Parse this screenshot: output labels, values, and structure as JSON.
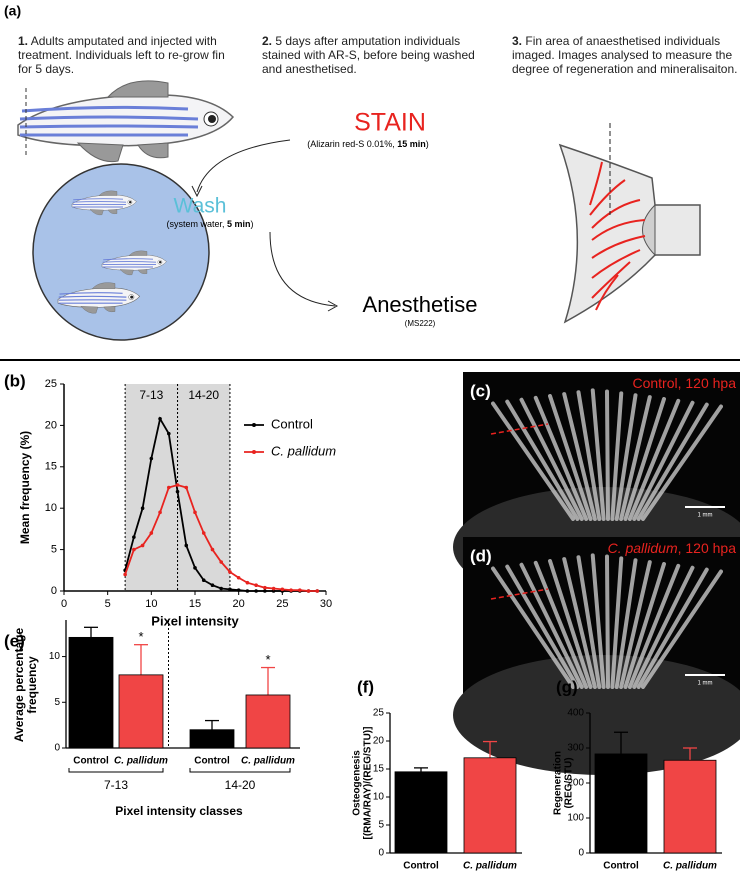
{
  "panel_a": {
    "label": "(a)",
    "steps": [
      {
        "number": "1.",
        "text": "Adults amputated and injected with treatment. Individuals left to re-grow fin for 5 days."
      },
      {
        "number": "2.",
        "text": "5 days after amputation individuals stained with AR-S, before being washed and anesthetised."
      },
      {
        "number": "3.",
        "text": "Fin area of anaesthetised individuals imaged. Images analysed to measure the degree of regeneration and mineralisaiton."
      }
    ],
    "stain": {
      "title": "STAIN",
      "detail_start": "(Alizarin red-S 0.01%, ",
      "detail_bold": "15 min",
      "detail_end": ")"
    },
    "wash": {
      "title": "Wash",
      "detail_start": "(system water, ",
      "detail_bold": "5 min",
      "detail_end": ")"
    },
    "anesthetise": {
      "title": "Anesthetise",
      "detail": "(MS222)"
    }
  },
  "images": [
    {
      "label": "(c)",
      "caption_italic": "",
      "caption": "Control, 120 hpa",
      "scale_bar": "1 mm"
    },
    {
      "label": "(d)",
      "caption_italic": "C. pallidum",
      "caption": ", 120 hpa",
      "scale_bar": "1 mm"
    }
  ],
  "chart_data": [
    {
      "type": "line",
      "label": "(b)",
      "xlabel": "Pixel intensity",
      "ylabel": "Mean frequency (%)",
      "xlim": [
        0,
        30
      ],
      "ylim": [
        0,
        25
      ],
      "xticks": [
        0,
        5,
        10,
        15,
        20,
        25,
        30
      ],
      "yticks": [
        0,
        5,
        10,
        15,
        20,
        25
      ],
      "legend": "upper right",
      "regions": [
        {
          "label": "7-13",
          "x": [
            7,
            13
          ]
        },
        {
          "label": "14-20",
          "x": [
            13,
            19
          ]
        }
      ],
      "x": [
        7,
        8,
        9,
        10,
        11,
        12,
        13,
        14,
        15,
        16,
        17,
        18,
        19,
        20,
        21,
        22,
        23,
        24,
        25,
        26,
        27,
        28,
        29
      ],
      "series": [
        {
          "name": "Control",
          "color": "#000000",
          "font_style": "normal",
          "values": [
            2.5,
            6.5,
            10,
            16,
            20.8,
            19,
            12,
            5.5,
            2.8,
            1.3,
            0.7,
            0.3,
            0.2,
            0.1,
            0,
            0,
            0,
            0,
            0,
            0,
            0,
            0,
            0
          ]
        },
        {
          "name": "C. pallidum",
          "color": "#e8231f",
          "font_style": "italic",
          "values": [
            2,
            5,
            5.5,
            7,
            9.5,
            12.5,
            12.8,
            12.5,
            9.5,
            7,
            5,
            3.5,
            2.3,
            1.6,
            1,
            0.7,
            0.4,
            0.3,
            0.2,
            0.1,
            0.1,
            0,
            0
          ]
        }
      ]
    },
    {
      "type": "bar",
      "label": "(e)",
      "xlabel": "Pixel intensity classes",
      "ylabel": [
        "Average percentage",
        "frequency"
      ],
      "categories": [
        "Control",
        "C. pallidum",
        "Control",
        "C. pallidum"
      ],
      "category_styles": [
        "normal",
        "italic",
        "normal",
        "italic"
      ],
      "groups": [
        "7-13",
        "14-20"
      ],
      "values": [
        12.1,
        8.0,
        2.0,
        5.8
      ],
      "errors": [
        1.1,
        3.3,
        1.0,
        3.0
      ],
      "significance": [
        null,
        "*",
        null,
        "*"
      ],
      "colors": [
        "#000000",
        "#f04545",
        "#000000",
        "#f04545"
      ],
      "ylim": [
        0,
        14
      ],
      "yticks": [
        0,
        5,
        10
      ]
    },
    {
      "type": "bar",
      "label": "(f)",
      "ylabel": [
        "Osteogenesis",
        "[(RMA/RAY)/(REG/STU)]"
      ],
      "categories": [
        "Control",
        "C. pallidum"
      ],
      "category_styles": [
        "normal",
        "italic"
      ],
      "values": [
        14.5,
        17
      ],
      "errors": [
        0.7,
        2.9
      ],
      "colors": [
        "#000000",
        "#f04545"
      ],
      "ylim": [
        0,
        25
      ],
      "yticks": [
        0,
        5,
        10,
        15,
        20,
        25
      ]
    },
    {
      "type": "bar",
      "label": "(g)",
      "ylabel": [
        "Regeneration",
        "(REG/STU)"
      ],
      "categories": [
        "Control",
        "C. pallidum"
      ],
      "category_styles": [
        "normal",
        "italic"
      ],
      "values": [
        283,
        265
      ],
      "errors": [
        62,
        35
      ],
      "colors": [
        "#000000",
        "#f04545"
      ],
      "ylim": [
        0,
        400
      ],
      "yticks": [
        0,
        100,
        200,
        300,
        400
      ]
    }
  ]
}
